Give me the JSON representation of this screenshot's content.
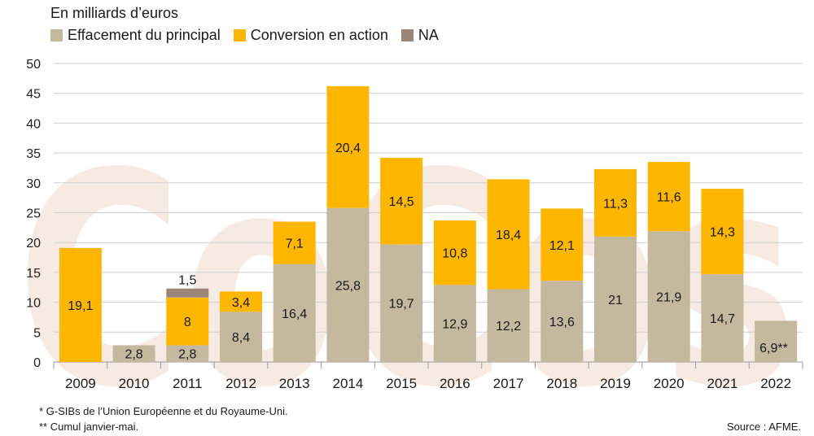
{
  "watermark": "CoCos",
  "colors": {
    "principal": "#c4b89e",
    "conversion": "#ffb600",
    "na": "#9b8579",
    "grid": "#cfcfcf",
    "watermark": "#f6eae2"
  },
  "legend": {
    "unit": "En milliards d’euros",
    "principal": "Effacement du principal",
    "conversion": "Conversion en action",
    "na": "NA"
  },
  "chart_data": {
    "type": "bar",
    "stacked": true,
    "title": "",
    "ylabel": "En milliards d’euros",
    "ylim": [
      0,
      50
    ],
    "yticks": [
      0,
      5,
      10,
      15,
      20,
      25,
      30,
      35,
      40,
      45,
      50
    ],
    "categories": [
      "2009",
      "2010",
      "2011",
      "2012",
      "2013",
      "2014",
      "2015",
      "2016",
      "2017",
      "2018",
      "2019",
      "2020",
      "2021",
      "2022"
    ],
    "series": [
      {
        "name": "Effacement du principal",
        "key": "principal",
        "values": [
          0,
          2.8,
          2.8,
          8.4,
          16.4,
          25.8,
          19.7,
          12.9,
          12.2,
          13.6,
          21,
          21.9,
          14.7,
          6.9
        ],
        "labels": [
          "",
          "2,8",
          "2,8",
          "8,4",
          "16,4",
          "25,8",
          "19,7",
          "12,9",
          "12,2",
          "13,6",
          "21",
          "21,9",
          "14,7",
          "6,9**"
        ]
      },
      {
        "name": "Conversion en action",
        "key": "conversion",
        "values": [
          19.1,
          0,
          8,
          3.4,
          7.1,
          20.4,
          14.5,
          10.8,
          18.4,
          12.1,
          11.3,
          11.6,
          14.3,
          0
        ],
        "labels": [
          "19,1",
          "",
          "8",
          "3,4",
          "7,1",
          "20,4",
          "14,5",
          "10,8",
          "18,4",
          "12,1",
          "11,3",
          "11,6",
          "14,3",
          ""
        ]
      },
      {
        "name": "NA",
        "key": "na",
        "values": [
          0,
          0,
          1.5,
          0,
          0,
          0,
          0,
          0,
          0,
          0,
          0,
          0,
          0,
          0
        ],
        "labels": [
          "",
          "",
          "1,5",
          "",
          "",
          "",
          "",
          "",
          "",
          "",
          "",
          "",
          "",
          ""
        ]
      }
    ]
  },
  "footnotes": {
    "note1": "* G-SIBs de l’Union Européenne et du Royaume-Uni.",
    "note2": "** Cumul janvier-mai.",
    "source": "Source : AFME."
  }
}
